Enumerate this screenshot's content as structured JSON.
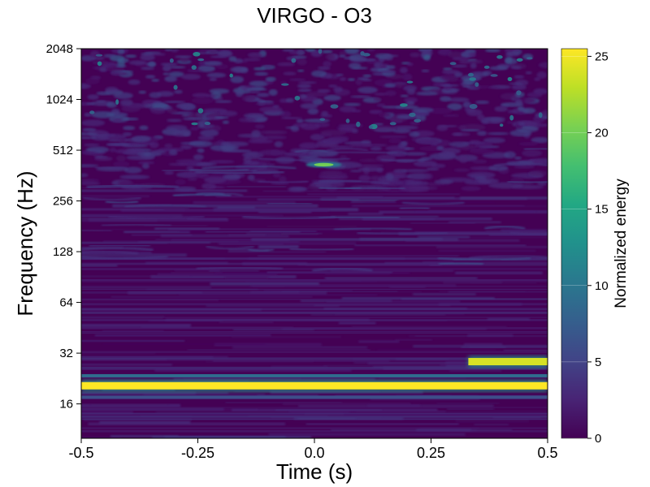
{
  "chart_data": {
    "type": "heatmap",
    "title": "VIRGO - O3",
    "xlabel": "Time (s)",
    "ylabel": "Frequency (Hz)",
    "colorbar_label": "Normalized energy",
    "x_ticks": [
      "-0.5",
      "-0.25",
      "0.0",
      "0.25",
      "0.5"
    ],
    "x_tick_values": [
      -0.5,
      -0.25,
      0.0,
      0.25,
      0.5
    ],
    "xlim": [
      -0.5,
      0.5
    ],
    "y_scale": "log2",
    "y_ticks": [
      "16",
      "32",
      "64",
      "128",
      "256",
      "512",
      "1024",
      "2048"
    ],
    "y_tick_values": [
      16,
      32,
      64,
      128,
      256,
      512,
      1024,
      2048
    ],
    "ylim": [
      10,
      2048
    ],
    "colorbar_ticks": [
      "0",
      "5",
      "10",
      "15",
      "20",
      "25"
    ],
    "colorbar_tick_values": [
      0,
      5,
      10,
      15,
      20,
      25
    ],
    "color_range": [
      0,
      25.5
    ],
    "colormap": "viridis",
    "features": [
      {
        "kind": "band",
        "freq": 20.5,
        "t_start": -0.5,
        "t_end": 0.5,
        "energy": 25.5
      },
      {
        "kind": "band",
        "freq": 28.5,
        "t_start": 0.33,
        "t_end": 0.5,
        "energy": 24
      },
      {
        "kind": "blip",
        "freq": 420,
        "t": 0.02,
        "energy": 20
      },
      {
        "kind": "band",
        "freq": 23.5,
        "t_start": -0.5,
        "t_end": 0.5,
        "energy": 9
      },
      {
        "kind": "band",
        "freq": 17.5,
        "t_start": -0.5,
        "t_end": 0.5,
        "energy": 6
      }
    ]
  }
}
